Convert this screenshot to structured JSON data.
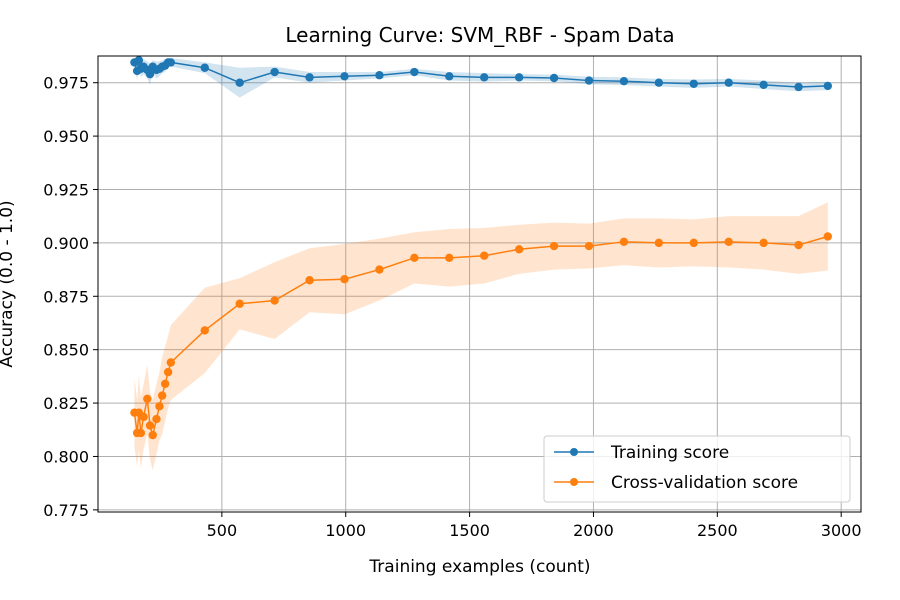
{
  "chart_data": {
    "type": "line",
    "title": "Learning Curve: SVM_RBF - Spam Data",
    "xlabel": "Training examples (count)",
    "ylabel": "Accuracy (0.0 - 1.0)",
    "xlim": [
      0,
      3080
    ],
    "ylim": [
      0.774,
      0.9875
    ],
    "xticks": [
      500,
      1000,
      1500,
      2000,
      2500,
      3000
    ],
    "yticks": [
      0.775,
      0.8,
      0.825,
      0.85,
      0.875,
      0.9,
      0.925,
      0.95,
      0.975
    ],
    "ytick_labels": [
      "0.775",
      "0.800",
      "0.825",
      "0.850",
      "0.875",
      "0.900",
      "0.925",
      "0.950",
      "0.975"
    ],
    "grid": true,
    "legend_position": "lower-right",
    "series": [
      {
        "name": "Training score",
        "color": "#1f77b4",
        "x": [
          147,
          158,
          165,
          173,
          184,
          199,
          210,
          221,
          236,
          248,
          259,
          271,
          283,
          294,
          431,
          572,
          713,
          854,
          995,
          1136,
          1277,
          1418,
          1559,
          1700,
          1841,
          1982,
          2123,
          2264,
          2405,
          2546,
          2687,
          2828,
          2946
        ],
        "values": [
          0.9845,
          0.9805,
          0.9855,
          0.9815,
          0.9825,
          0.981,
          0.979,
          0.9825,
          0.981,
          0.9815,
          0.9825,
          0.983,
          0.9845,
          0.9845,
          0.982,
          0.975,
          0.98,
          0.9775,
          0.978,
          0.9785,
          0.98,
          0.978,
          0.9775,
          0.9775,
          0.9772,
          0.976,
          0.9757,
          0.975,
          0.9745,
          0.975,
          0.974,
          0.973,
          0.9735
        ],
        "band_upper": [
          0.987,
          0.985,
          0.987,
          0.9855,
          0.986,
          0.985,
          0.984,
          0.9855,
          0.985,
          0.985,
          0.9855,
          0.986,
          0.9865,
          0.9865,
          0.9845,
          0.982,
          0.9825,
          0.98,
          0.98,
          0.98,
          0.9815,
          0.98,
          0.9795,
          0.979,
          0.9788,
          0.9778,
          0.9775,
          0.9768,
          0.9765,
          0.9768,
          0.976,
          0.975,
          0.9755
        ],
        "band_lower": [
          0.982,
          0.976,
          0.984,
          0.9775,
          0.979,
          0.977,
          0.974,
          0.9795,
          0.977,
          0.978,
          0.9795,
          0.98,
          0.9825,
          0.9825,
          0.9795,
          0.968,
          0.9775,
          0.975,
          0.976,
          0.977,
          0.9785,
          0.976,
          0.9755,
          0.976,
          0.9756,
          0.9742,
          0.9739,
          0.9732,
          0.9725,
          0.9732,
          0.972,
          0.971,
          0.9715
        ]
      },
      {
        "name": "Cross-validation score",
        "color": "#ff7f0e",
        "x": [
          147,
          158,
          165,
          173,
          184,
          199,
          210,
          221,
          236,
          248,
          259,
          271,
          283,
          294,
          431,
          572,
          713,
          854,
          995,
          1136,
          1277,
          1418,
          1559,
          1700,
          1841,
          1982,
          2123,
          2264,
          2405,
          2546,
          2687,
          2828,
          2946
        ],
        "values": [
          0.8205,
          0.811,
          0.8205,
          0.811,
          0.8185,
          0.827,
          0.8145,
          0.81,
          0.8175,
          0.8235,
          0.8285,
          0.834,
          0.8395,
          0.844,
          0.859,
          0.8715,
          0.873,
          0.8825,
          0.883,
          0.8875,
          0.893,
          0.893,
          0.894,
          0.897,
          0.8985,
          0.8985,
          0.9005,
          0.9,
          0.9,
          0.9005,
          0.9,
          0.899,
          0.903
        ],
        "band_upper": [
          0.8365,
          0.8265,
          0.838,
          0.8275,
          0.834,
          0.843,
          0.8305,
          0.8265,
          0.834,
          0.8395,
          0.8465,
          0.8515,
          0.8565,
          0.8615,
          0.879,
          0.8835,
          0.891,
          0.8975,
          0.8995,
          0.902,
          0.905,
          0.9065,
          0.907,
          0.9085,
          0.9095,
          0.909,
          0.9115,
          0.9115,
          0.911,
          0.9125,
          0.9125,
          0.9125,
          0.919
        ],
        "band_lower": [
          0.8045,
          0.7955,
          0.803,
          0.7945,
          0.803,
          0.811,
          0.7985,
          0.7935,
          0.801,
          0.8075,
          0.8105,
          0.8165,
          0.8225,
          0.8265,
          0.839,
          0.8595,
          0.855,
          0.8675,
          0.8665,
          0.873,
          0.881,
          0.8795,
          0.881,
          0.8855,
          0.8875,
          0.888,
          0.8895,
          0.8885,
          0.889,
          0.8885,
          0.8875,
          0.8855,
          0.887
        ]
      }
    ]
  }
}
